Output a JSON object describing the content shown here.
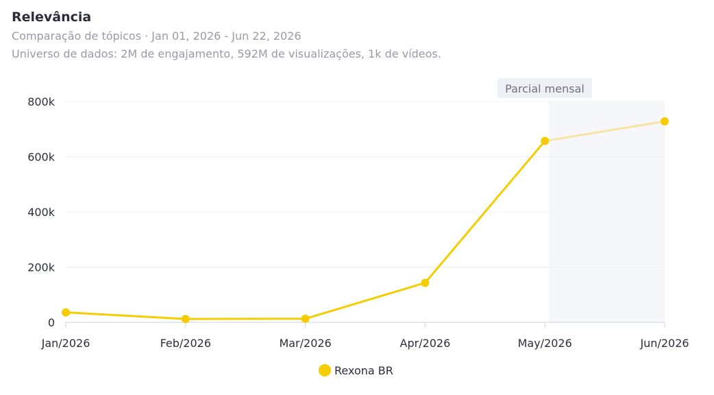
{
  "header": {
    "title": "Relevância",
    "subtitle": "Comparação de tópicos · Jan 01, 2026 - Jun 22, 2026",
    "universe": "Universo de dados: 2M de engajamento, 592M de visualizações, 1k de vídeos."
  },
  "chart_data": {
    "type": "line",
    "categories": [
      "Jan/2026",
      "Feb/2026",
      "Mar/2026",
      "Apr/2026",
      "May/2026",
      "Jun/2026"
    ],
    "series": [
      {
        "name": "Rexona BR",
        "color": "#f5cc00",
        "values": [
          36000,
          12000,
          13000,
          143000,
          657000,
          728000
        ]
      }
    ],
    "ylim": [
      0,
      800000
    ],
    "yticks": [
      0,
      200000,
      400000,
      600000,
      800000
    ],
    "ytick_labels": [
      "0",
      "200k",
      "400k",
      "600k",
      "800k"
    ],
    "partial_region": {
      "label": "Parcial mensal",
      "from_category_index": 4,
      "to_category_index": 5
    },
    "grid": true,
    "legend_position": "bottom-center",
    "colors": {
      "line": "#f5cc00",
      "line_partial": "#f8e3a1",
      "partial_band": "#f6f7fb",
      "grid": "#eef0f4",
      "axis": "#cfd2da"
    }
  }
}
